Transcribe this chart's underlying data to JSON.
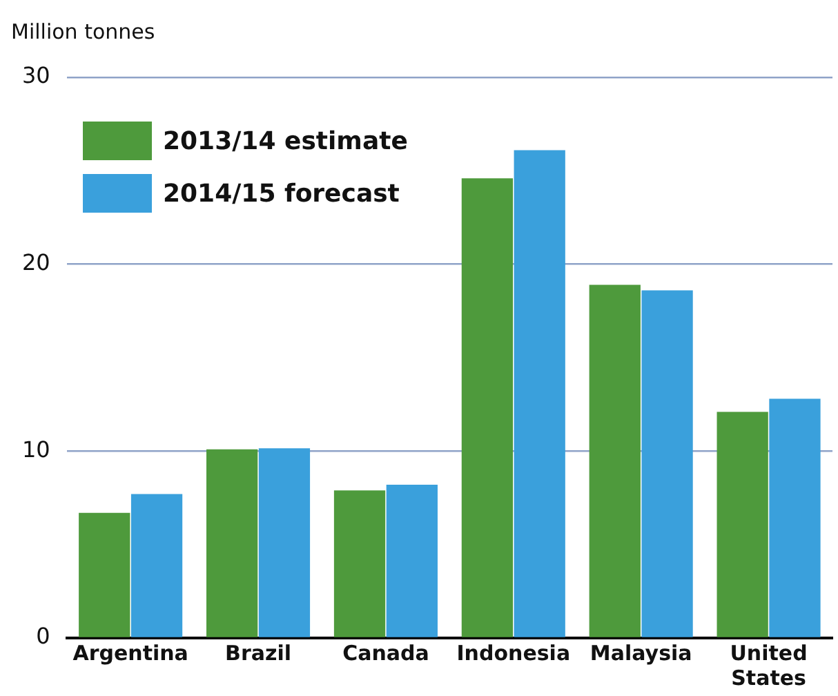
{
  "chart_data": {
    "type": "bar",
    "ylabel": "Million tonnes",
    "categories": [
      "Argentina",
      "Brazil",
      "Canada",
      "Indonesia",
      "Malaysia",
      "United States"
    ],
    "series": [
      {
        "name": "2013/14 estimate",
        "color": "#4e9a3c",
        "values": [
          6.7,
          10.1,
          7.9,
          24.6,
          18.9,
          12.1
        ]
      },
      {
        "name": "2014/15 forecast",
        "color": "#3aa0dc",
        "values": [
          7.7,
          10.15,
          8.2,
          26.1,
          18.6,
          12.8
        ]
      }
    ],
    "ylim": [
      0,
      30
    ],
    "yticks": [
      0,
      10,
      20,
      30
    ],
    "grid": "y",
    "legend": "top left"
  }
}
